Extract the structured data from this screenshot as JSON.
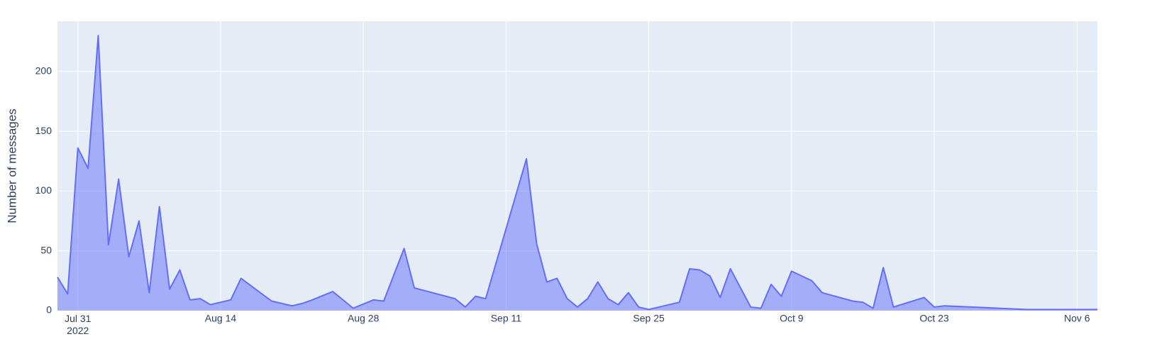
{
  "chart_data": {
    "type": "area",
    "y_label": "Number of messages",
    "x": [
      "2022-07-29",
      "2022-07-30",
      "2022-07-31",
      "2022-08-01",
      "2022-08-02",
      "2022-08-03",
      "2022-08-04",
      "2022-08-05",
      "2022-08-06",
      "2022-08-07",
      "2022-08-08",
      "2022-08-09",
      "2022-08-10",
      "2022-08-11",
      "2022-08-12",
      "2022-08-13",
      "2022-08-15",
      "2022-08-16",
      "2022-08-19",
      "2022-08-21",
      "2022-08-22",
      "2022-08-23",
      "2022-08-25",
      "2022-08-27",
      "2022-08-29",
      "2022-08-30",
      "2022-09-01",
      "2022-09-02",
      "2022-09-06",
      "2022-09-07",
      "2022-09-08",
      "2022-09-09",
      "2022-09-13",
      "2022-09-14",
      "2022-09-15",
      "2022-09-16",
      "2022-09-17",
      "2022-09-18",
      "2022-09-19",
      "2022-09-20",
      "2022-09-21",
      "2022-09-22",
      "2022-09-23",
      "2022-09-24",
      "2022-09-25",
      "2022-09-28",
      "2022-09-29",
      "2022-09-30",
      "2022-10-01",
      "2022-10-02",
      "2022-10-03",
      "2022-10-05",
      "2022-10-06",
      "2022-10-07",
      "2022-10-08",
      "2022-10-09",
      "2022-10-11",
      "2022-10-12",
      "2022-10-15",
      "2022-10-16",
      "2022-10-17",
      "2022-10-18",
      "2022-10-19",
      "2022-10-22",
      "2022-10-23",
      "2022-10-24",
      "2022-11-01",
      "2022-11-08"
    ],
    "values": [
      28,
      14,
      136,
      119,
      230,
      55,
      110,
      45,
      75,
      15,
      87,
      18,
      34,
      9,
      10,
      5,
      9,
      27,
      8,
      4,
      6,
      9,
      16,
      2,
      9,
      8,
      52,
      19,
      10,
      3,
      12,
      10,
      127,
      56,
      24,
      27,
      10,
      3,
      10,
      24,
      10,
      5,
      15,
      3,
      1,
      7,
      35,
      34,
      29,
      11,
      35,
      3,
      2,
      22,
      12,
      33,
      25,
      15,
      8,
      7,
      2,
      36,
      3,
      11,
      3,
      4,
      1,
      1
    ],
    "color": "#636efa",
    "xlim": [
      "2022-07-29",
      "2022-11-08"
    ],
    "xticks": [
      {
        "value": "2022-07-31",
        "label": "Jul 31\n2022"
      },
      {
        "value": "2022-08-14",
        "label": "Aug 14"
      },
      {
        "value": "2022-08-28",
        "label": "Aug 28"
      },
      {
        "value": "2022-09-11",
        "label": "Sep 11"
      },
      {
        "value": "2022-09-25",
        "label": "Sep 25"
      },
      {
        "value": "2022-10-09",
        "label": "Oct 9"
      },
      {
        "value": "2022-10-23",
        "label": "Oct 23"
      },
      {
        "value": "2022-11-06",
        "label": "Nov 6"
      }
    ],
    "ylim": [
      0,
      242
    ],
    "yticks": [
      0,
      50,
      100,
      150,
      200
    ],
    "grid": true
  }
}
